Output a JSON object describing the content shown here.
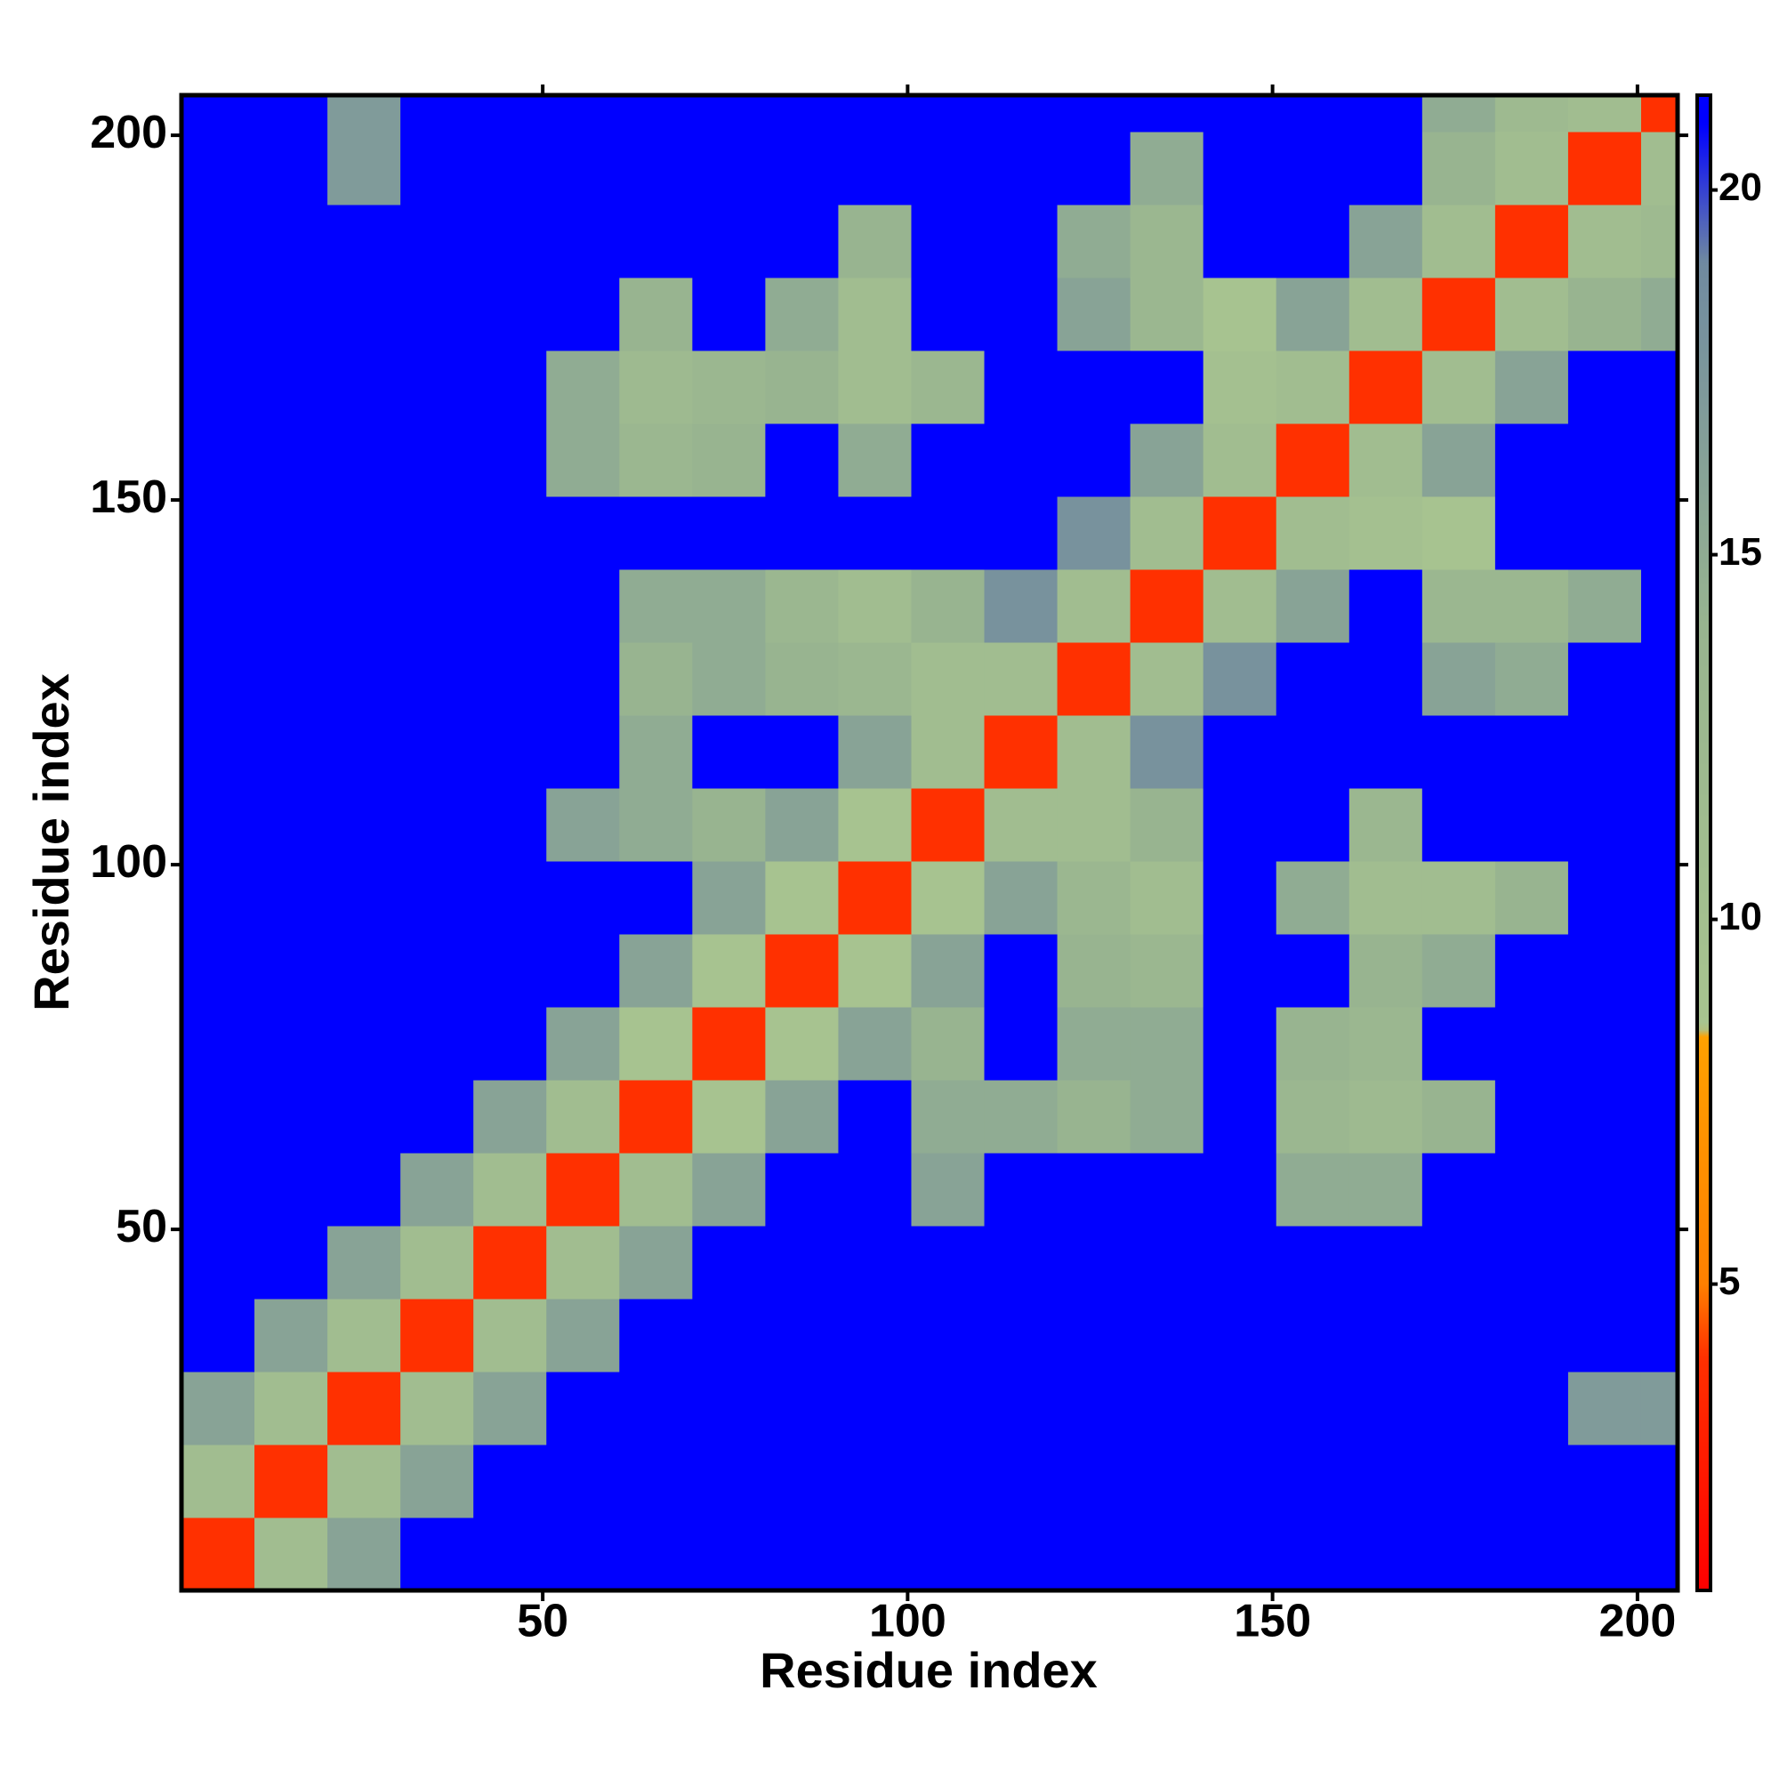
{
  "chart_data": {
    "type": "heatmap",
    "xlabel": "Residue index",
    "ylabel": "Residue index",
    "xlim": [
      0.5,
      205.5
    ],
    "ylim": [
      0.5,
      205.5
    ],
    "xticks": [
      50,
      100,
      150,
      200
    ],
    "yticks": [
      50,
      100,
      150,
      200
    ],
    "x_bins": [
      0.5,
      10.5,
      20.5,
      30.5,
      40.5,
      50.5,
      60.5,
      70.5,
      80.5,
      90.5,
      100.5,
      110.5,
      120.5,
      130.5,
      140.5,
      150.5,
      160.5,
      170.5,
      180.5,
      190.5,
      200.5,
      205.5
    ],
    "y_bins": [
      0.5,
      10.5,
      20.5,
      30.5,
      40.5,
      50.5,
      60.5,
      70.5,
      80.5,
      90.5,
      100.5,
      110.5,
      120.5,
      130.5,
      140.5,
      150.5,
      160.5,
      170.5,
      180.5,
      190.5,
      200.5,
      205.5
    ],
    "z": [
      [
        4,
        11,
        16,
        21,
        21,
        21,
        21,
        21,
        21,
        21,
        21,
        21,
        21,
        21,
        21,
        21,
        21,
        21,
        21,
        21,
        21
      ],
      [
        11,
        4,
        11,
        16,
        21,
        21,
        21,
        21,
        21,
        21,
        21,
        21,
        21,
        21,
        21,
        21,
        21,
        21,
        21,
        21,
        21
      ],
      [
        16,
        11,
        4,
        11,
        16,
        21,
        21,
        21,
        21,
        21,
        21,
        21,
        21,
        21,
        21,
        21,
        21,
        21,
        21,
        17,
        17
      ],
      [
        21,
        16,
        11,
        4,
        11,
        16,
        21,
        21,
        21,
        21,
        21,
        21,
        21,
        21,
        21,
        21,
        21,
        21,
        21,
        21,
        21
      ],
      [
        21,
        21,
        16,
        11,
        4,
        11,
        16,
        21,
        21,
        21,
        21,
        21,
        21,
        21,
        21,
        21,
        21,
        21,
        21,
        21,
        21
      ],
      [
        21,
        21,
        21,
        16,
        11,
        4,
        11,
        16,
        21,
        21,
        16,
        21,
        21,
        21,
        21,
        15,
        15,
        21,
        21,
        21,
        21
      ],
      [
        21,
        21,
        21,
        21,
        16,
        11,
        4,
        9,
        16,
        21,
        15,
        15,
        14,
        15,
        21,
        13,
        12,
        14,
        21,
        21,
        21
      ],
      [
        21,
        21,
        21,
        21,
        21,
        16,
        9,
        4,
        9,
        16,
        14,
        21,
        15,
        15,
        21,
        14,
        13,
        21,
        21,
        21,
        21
      ],
      [
        21,
        21,
        21,
        21,
        21,
        21,
        16,
        9,
        4,
        9,
        16,
        21,
        14,
        13,
        21,
        21,
        14,
        15,
        21,
        21,
        21
      ],
      [
        21,
        21,
        21,
        21,
        21,
        21,
        21,
        16,
        9,
        4,
        9,
        16,
        13,
        11,
        21,
        15,
        11,
        11,
        14,
        21,
        21
      ],
      [
        21,
        21,
        21,
        21,
        21,
        16,
        15,
        14,
        16,
        9,
        4,
        11,
        11,
        14,
        21,
        21,
        13,
        21,
        21,
        21,
        21
      ],
      [
        21,
        21,
        21,
        21,
        21,
        21,
        15,
        21,
        21,
        16,
        11,
        4,
        11,
        18,
        21,
        21,
        21,
        21,
        21,
        21,
        21
      ],
      [
        21,
        21,
        21,
        21,
        21,
        21,
        14,
        15,
        14,
        13,
        11,
        11,
        4,
        11,
        18,
        21,
        21,
        16,
        15,
        21,
        21
      ],
      [
        21,
        21,
        21,
        21,
        21,
        21,
        15,
        15,
        13,
        11,
        14,
        18,
        11,
        4,
        11,
        16,
        21,
        13,
        13,
        15,
        21
      ],
      [
        21,
        21,
        21,
        21,
        21,
        21,
        21,
        21,
        21,
        21,
        21,
        21,
        18,
        11,
        4,
        11,
        10,
        9,
        21,
        21,
        21
      ],
      [
        21,
        21,
        21,
        21,
        21,
        15,
        13,
        14,
        21,
        15,
        21,
        21,
        21,
        16,
        11,
        4,
        11,
        16,
        21,
        21,
        21
      ],
      [
        21,
        21,
        21,
        21,
        21,
        15,
        12,
        13,
        14,
        11,
        13,
        21,
        21,
        21,
        10,
        11,
        4,
        11,
        16,
        21,
        21
      ],
      [
        21,
        21,
        21,
        21,
        21,
        21,
        14,
        21,
        15,
        11,
        21,
        21,
        16,
        13,
        9,
        16,
        11,
        4,
        11,
        14,
        15
      ],
      [
        21,
        21,
        21,
        21,
        21,
        21,
        21,
        21,
        21,
        14,
        21,
        21,
        15,
        13,
        21,
        21,
        16,
        11,
        4,
        11,
        12
      ],
      [
        21,
        21,
        17,
        21,
        21,
        21,
        21,
        21,
        21,
        21,
        21,
        21,
        21,
        15,
        21,
        21,
        21,
        14,
        11,
        4,
        11
      ],
      [
        21,
        21,
        17,
        21,
        21,
        21,
        21,
        21,
        21,
        21,
        21,
        21,
        21,
        21,
        21,
        21,
        21,
        15,
        12,
        11,
        4
      ]
    ],
    "zlim": [
      0.8,
      21.3
    ],
    "zticks": [
      5,
      10,
      15,
      20
    ],
    "colorscale": [
      [
        0.8,
        "#ff0000"
      ],
      [
        4,
        "#ff3000"
      ],
      [
        5,
        "#ff8000"
      ],
      [
        8.4,
        "#ffa000"
      ],
      [
        8.5,
        "#a8c490"
      ],
      [
        14,
        "#98b490"
      ],
      [
        19,
        "#708aa0"
      ],
      [
        20.9,
        "#0000ff"
      ]
    ]
  }
}
